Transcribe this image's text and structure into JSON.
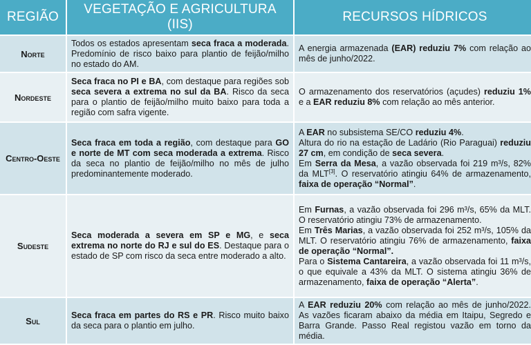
{
  "header": {
    "col_region": "REGIÃO",
    "col_vegetation": "VEGETAÇÃO E AGRICULTURA (IIS)",
    "col_water": "RECURSOS HÍDRICOS"
  },
  "colors": {
    "header_bg": "#4bacc6",
    "row_dark": "#d1e3ea",
    "row_light": "#e8f0f3"
  },
  "rows": [
    {
      "region": "Norte",
      "vegetation": [
        [
          {
            "t": "Todos os estados apresentam "
          },
          {
            "t": "seca fraca a moderada",
            "b": true
          },
          {
            "t": ". Predomínio de risco baixo para plantio de feijão/milho no estado do AM."
          }
        ]
      ],
      "water": [
        [
          {
            "t": "A energia armazenada "
          },
          {
            "t": "(EAR) reduziu 7%",
            "b": true
          },
          {
            "t": " com relação ao mês de junho/2022."
          }
        ]
      ]
    },
    {
      "region": "Nordeste",
      "vegetation": [
        [
          {
            "t": "Seca fraca no PI e BA",
            "b": true
          },
          {
            "t": ", com destaque para regiões sob "
          },
          {
            "t": "seca severa a extrema no sul da BA",
            "b": true
          },
          {
            "t": ". Risco da seca para o plantio de feijão/milho muito baixo para toda a região com safra vigente."
          }
        ]
      ],
      "water": [
        [
          {
            "t": "O armazenamento dos reservatórios (açudes) "
          },
          {
            "t": "reduziu 1%",
            "b": true
          },
          {
            "t": " e a "
          },
          {
            "t": "EAR reduziu 8%",
            "b": true
          },
          {
            "t": " com relação ao mês anterior."
          }
        ]
      ]
    },
    {
      "region": "Centro-Oeste",
      "vegetation": [
        [
          {
            "t": "Seca fraca em toda a região",
            "b": true
          },
          {
            "t": ", com destaque para "
          },
          {
            "t": "GO e norte de MT com seca moderada a extrema",
            "b": true
          },
          {
            "t": ". Risco da seca no plantio de feijão/milho no mês de julho predominantemente moderado."
          }
        ]
      ],
      "water": [
        [
          {
            "t": "A "
          },
          {
            "t": "EAR",
            "b": true
          },
          {
            "t": " no subsistema SE/CO "
          },
          {
            "t": "reduziu 4%",
            "b": true
          },
          {
            "t": "."
          }
        ],
        [
          {
            "t": "Altura do rio na estação de Ladário (Rio Paraguai) "
          },
          {
            "t": "reduziu 27 cm",
            "b": true
          },
          {
            "t": ", em condição de "
          },
          {
            "t": "seca severa",
            "b": true
          },
          {
            "t": "."
          }
        ],
        [
          {
            "t": "Em "
          },
          {
            "t": "Serra da Mesa",
            "b": true
          },
          {
            "t": ", a vazão observada foi 219 m³/s, 82% da MLT"
          },
          {
            "t": "[3]",
            "sup": true
          },
          {
            "t": ". O reservatório atingiu 64% de armazenamento, "
          },
          {
            "t": "faixa de operação “Normal”",
            "b": true
          },
          {
            "t": "."
          }
        ]
      ]
    },
    {
      "region": "Sudeste",
      "vegetation": [
        [
          {
            "t": "Seca moderada a severa em SP e MG",
            "b": true
          },
          {
            "t": ", e "
          },
          {
            "t": "seca extrema no norte do RJ e sul do ES",
            "b": true
          },
          {
            "t": ". Destaque para o estado de SP com risco da seca entre moderado a alto."
          }
        ]
      ],
      "water": [
        [
          {
            "t": "Em "
          },
          {
            "t": "Furnas",
            "b": true
          },
          {
            "t": ", a vazão observada foi 296 m³/s, 65% da MLT. O reservatório atingiu 73% de armazenamento."
          }
        ],
        [
          {
            "t": "Em "
          },
          {
            "t": "Três Marias",
            "b": true
          },
          {
            "t": ", a vazão observada foi 252 m³/s, 105% da MLT. O reservatório atingiu 76% de armazenamento, "
          },
          {
            "t": "faixa de operação “Normal”.",
            "b": true
          }
        ],
        [
          {
            "t": "Para o "
          },
          {
            "t": "Sistema Cantareira",
            "b": true
          },
          {
            "t": ", a vazão observada foi 11 m³/s, o que equivale a 43% da MLT. O sistema atingiu 36% de armazenamento, "
          },
          {
            "t": "faixa de operação “Alerta”",
            "b": true
          },
          {
            "t": "."
          }
        ]
      ]
    },
    {
      "region": "Sul",
      "vegetation": [
        [
          {
            "t": "Seca fraca em partes do RS e PR",
            "b": true
          },
          {
            "t": ". Risco muito baixo da seca para o plantio em julho."
          }
        ]
      ],
      "water": [
        [
          {
            "t": "A "
          },
          {
            "t": "EAR reduziu 20%",
            "b": true
          },
          {
            "t": " com relação ao mês de junho/2022. As vazões ficaram abaixo da média em Itaipu, Segredo e Barra Grande. Passo Real registou vazão em torno da média."
          }
        ]
      ]
    }
  ]
}
